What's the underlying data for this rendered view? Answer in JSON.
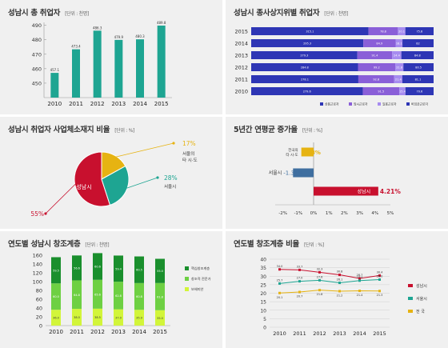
{
  "colors": {
    "panel_bg": "#f0f0f0",
    "teal": "#1ea592",
    "navy": "#2e36b5",
    "purple": "#8a5fd8",
    "violet": "#a78cf0",
    "lavender": "#c8b8f5",
    "crimson": "#c8102e",
    "gold": "#e6b312",
    "dark_green": "#1a8f2d",
    "mid_green": "#6ed043",
    "lime": "#d2f53a",
    "blue_gray": "#3f6fa0"
  },
  "panels": [
    {
      "title": "성남시 총 취업자",
      "unit": "[단위 : 천명]",
      "chart_data": {
        "type": "bar",
        "categories": [
          "2010",
          "2011",
          "2012",
          "2013",
          "2014",
          "2015"
        ],
        "values": [
          457.1,
          473.4,
          486.3,
          479.9,
          480.3,
          489.8
        ],
        "value_labels": [
          "457.1",
          "473.4",
          "486.3",
          "479.9",
          "480.3",
          "489.8"
        ],
        "yticks": [
          450,
          460,
          470,
          480,
          490
        ],
        "ylim": [
          440,
          492
        ]
      }
    },
    {
      "title": "성남시 종사상지위별 취업자",
      "unit": "[단위 : 천명]",
      "chart_data": {
        "type": "bar",
        "orientation": "horizontal-stacked",
        "categories": [
          "2015",
          "2014",
          "2013",
          "2012",
          "2011",
          "2010"
        ],
        "series": [
          {
            "name": "상용근로자",
            "values": [
              315.1,
              295.3,
              279.3,
              284.8,
              278.1,
              279.6
            ]
          },
          {
            "name": "임시근로자",
            "values": [
              78.8,
              84.9,
              91.4,
              99.2,
              92.8,
              91.5
            ]
          },
          {
            "name": "일용근로자",
            "values": [
              20.1,
              18.1,
              24.4,
              21.8,
              21.4,
              15.4
            ]
          },
          {
            "name": "비임금근로자",
            "values": [
              75.8,
              82.0,
              84.8,
              80.5,
              81.1,
              70.6
            ]
          }
        ]
      }
    },
    {
      "title": "성남시 취업자 사업체소재지 비율",
      "unit": "[단위 : %]",
      "chart_data": {
        "type": "pie",
        "slices": [
          {
            "label": "성남시",
            "value": 55,
            "value_label": "55%"
          },
          {
            "label": "서울의 타 시·도",
            "value": 17,
            "value_label": "17%"
          },
          {
            "label": "서울시",
            "value": 28,
            "value_label": "28%"
          }
        ]
      }
    },
    {
      "title": "5년간 연평균 증가율",
      "unit": "[단위 : %]",
      "chart_data": {
        "type": "bar",
        "orientation": "horizontal",
        "categories": [
          "전국",
          "서울시",
          "성남시"
        ],
        "category_labels": [
          "전국의\n타 시·도",
          "서울시",
          "성남시"
        ],
        "values": [
          -0.8,
          -1.34,
          4.21
        ],
        "value_labels": [
          "-0.8%",
          "-1.34%",
          "4.21%"
        ],
        "xticks": [
          "-2%",
          "-1%",
          "0%",
          "1%",
          "2%",
          "3%",
          "4%",
          "5%"
        ],
        "xlim": [
          -2.5,
          5
        ]
      }
    },
    {
      "title": "연도별 성남시 창조계층",
      "unit": "[단위 : 천명]",
      "chart_data": {
        "type": "bar",
        "orientation": "vertical-stacked",
        "categories": [
          "2010",
          "2011",
          "2012",
          "2013",
          "2014",
          "2015"
        ],
        "series": [
          {
            "name": "창조적 전문가",
            "values": [
              59.5,
              56.6,
              60.6,
              59.4,
              60.5,
              55.0
            ]
          },
          {
            "name": "창조적 전문가",
            "values": [
              60.0,
              64.8,
              65.6,
              62.8,
              60.8,
              61.8
            ]
          },
          {
            "name": "보헤미안",
            "values": [
              36.0,
              38.0,
              38.5,
              37.0,
              35.9,
              35.0
            ]
          }
        ],
        "segment_labels": [
          [
            "59.5",
            "60.0",
            "36.0"
          ],
          [
            "56.6",
            "64.8",
            "38.0"
          ],
          [
            "60.6",
            "65.6",
            "38.5"
          ],
          [
            "59.4",
            "62.8",
            "37.0"
          ],
          [
            "60.5",
            "60.8",
            "35.9"
          ],
          [
            "55.0",
            "61.8",
            "35.0"
          ]
        ],
        "top_labels": [
          "155.5",
          "159.4",
          "164.6",
          "159.2",
          "157.2",
          "151.8"
        ],
        "yticks": [
          0,
          20,
          40,
          60,
          80,
          100,
          120,
          140,
          160
        ],
        "ylim": [
          0,
          160
        ]
      }
    },
    {
      "title": "연도별 창조계층 비율",
      "unit": "[단위 : %]",
      "chart_data": {
        "type": "line",
        "x": [
          "2010",
          "2011",
          "2012",
          "2013",
          "2014",
          "2015"
        ],
        "series": [
          {
            "name": "성남시",
            "values": [
              34.0,
              33.7,
              32.3,
              30.8,
              28.7,
              30.4
            ]
          },
          {
            "name": "서울시",
            "values": [
              25.7,
              27.0,
              27.6,
              26.1,
              27.4,
              28.0
            ]
          },
          {
            "name": "전국",
            "values": [
              20.1,
              20.7,
              21.8,
              21.2,
              21.4,
              21.3
            ]
          }
        ],
        "legend": [
          "성남시",
          "서울시",
          "전 국"
        ],
        "yticks": [
          0,
          5,
          10,
          15,
          20,
          25,
          30,
          35,
          40
        ],
        "ylim": [
          0,
          40
        ]
      }
    }
  ]
}
